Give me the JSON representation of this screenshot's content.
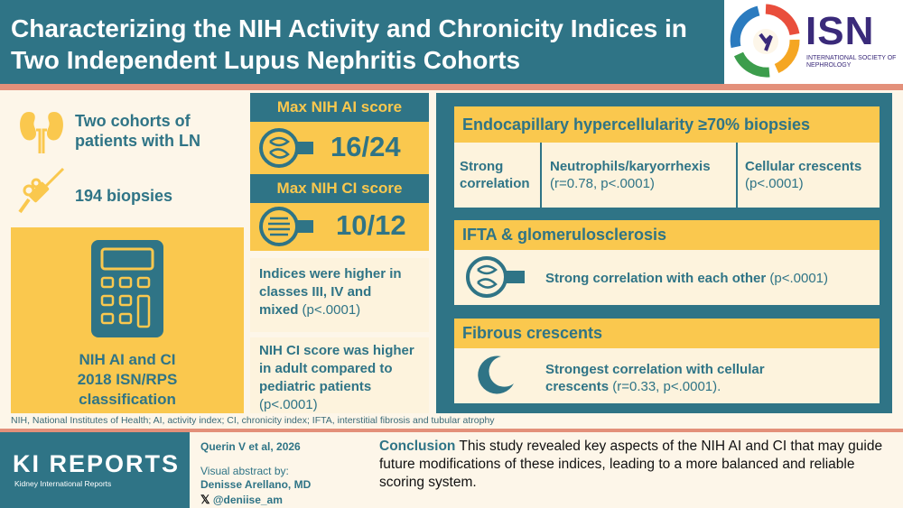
{
  "header": {
    "title_line1": "Characterizing the NIH Activity and Chronicity Indices in",
    "title_line2": "Two Independent Lupus Nephritis Cohorts",
    "logo_text": "ISN",
    "logo_subtext": "INTERNATIONAL SOCIETY OF NEPHROLOGY"
  },
  "left": {
    "cohorts_line1": "Two cohorts of",
    "cohorts_line2": "patients with LN",
    "biopsies": "194 biopsies",
    "calc_line1": "NIH AI and CI",
    "calc_line2": "2018 ISN/RPS",
    "calc_line3": "classification"
  },
  "scores": {
    "ai_label": "Max NIH AI score",
    "ai_value": "16/24",
    "ci_label": "Max NIH CI score",
    "ci_value": "10/12"
  },
  "middle": {
    "indices_line1": "Indices were higher in",
    "indices_line2": "classes III, IV and",
    "indices_line3": "mixed",
    "indices_p": "(p<.0001)",
    "ci_line1": "NIH CI score was higher",
    "ci_line2": "in adult compared to",
    "ci_line3": "pediatric patients",
    "ci_p": "(p<.0001)"
  },
  "right": {
    "endo_title": "Endocapillary hypercellularity ≥70% biopsies",
    "strong_line1": "Strong",
    "strong_line2": "correlation",
    "neutro_title": "Neutrophils/karyorrhexis",
    "neutro_stat": "(r=0.78, p<.0001)",
    "cellular_title": "Cellular crescents",
    "cellular_stat": "(p<.0001)",
    "ifta_title": "IFTA & glomerulosclerosis",
    "ifta_text": "Strong correlation with each other",
    "ifta_stat": "(p<.0001)",
    "fibrous_title": "Fibrous crescents",
    "fibrous_line1": "Strongest correlation with cellular",
    "fibrous_line2": "crescents",
    "fibrous_stat": "(r=0.33, p<.0001)."
  },
  "footnote": "NIH, National Institutes of Health; AI, activity index; CI, chronicity index; IFTA, interstitial fibrosis and tubular atrophy",
  "footer": {
    "journal": "KI REPORTS",
    "journal_sub": "Kidney International Reports",
    "citation": "Querin V et al, 2026",
    "abstract_by": "Visual abstract by:",
    "author": "Denisse Arellano, MD",
    "handle": "@deniise_am",
    "conclusion_label": "Conclusion",
    "conclusion_text": "This study revealed key aspects of the NIH AI and CI that may guide future modifications of these indices, leading to a more balanced and reliable scoring system."
  },
  "colors": {
    "teal": "#2f7486",
    "yellow": "#fac84e",
    "salmon": "#e3907a",
    "cream": "#fdf6e9",
    "isn_purple": "#3a2a7a"
  }
}
